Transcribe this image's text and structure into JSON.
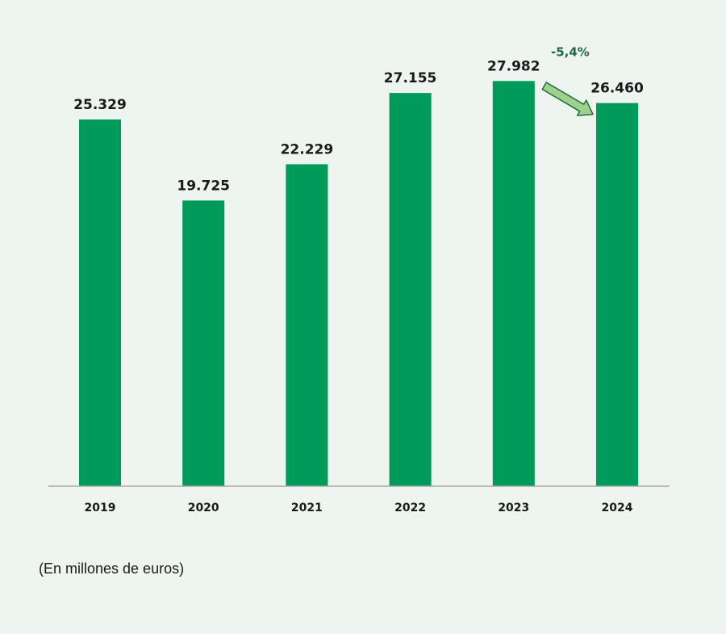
{
  "chart_data": {
    "type": "bar",
    "categories": [
      "2019",
      "2020",
      "2021",
      "2022",
      "2023",
      "2024"
    ],
    "values": [
      25329,
      19725,
      22229,
      27155,
      27982,
      26460
    ],
    "value_labels": [
      "25.329",
      "19.725",
      "22.229",
      "27.155",
      "27.982",
      "26.460"
    ],
    "ylim": [
      0,
      28500
    ],
    "bar_color": "#009a5a",
    "grid": false,
    "annotation": {
      "text": "-5,4%",
      "from_category": "2023",
      "to_category": "2024",
      "arrow_color": "#9fd18a",
      "arrow_stroke": "#1e6b40"
    },
    "note": "(En millones de euros)"
  }
}
